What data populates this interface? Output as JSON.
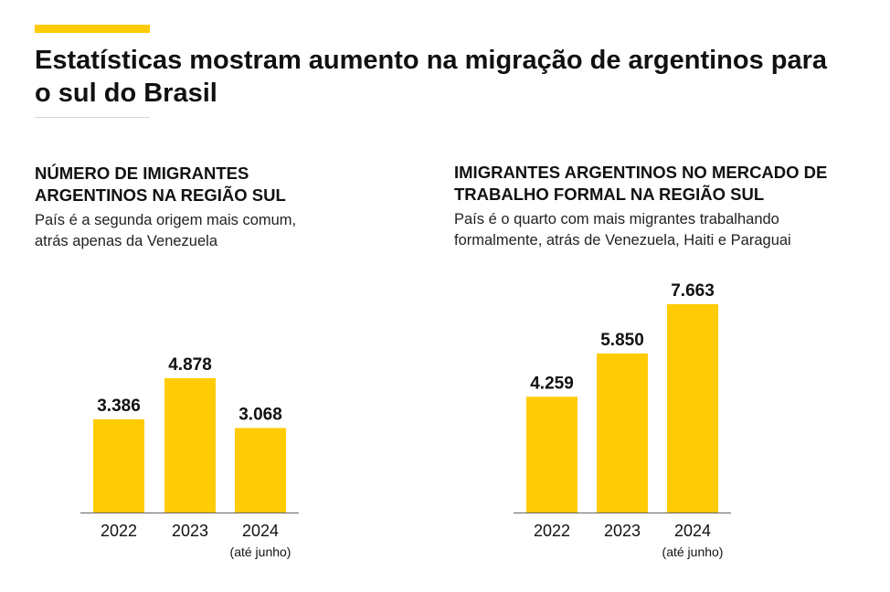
{
  "page": {
    "headline": "Estatísticas mostram aumento na migração de argentinos para o sul do Brasil",
    "accent_color": "#FFCB05"
  },
  "chart_data": [
    {
      "type": "bar",
      "title": "NÚMERO DE IMIGRANTES ARGENTINOS NA REGIÃO SUL",
      "subtitle": "País é a segunda origem mais comum, atrás apenas da Venezuela",
      "categories": [
        "2022",
        "2023",
        "2024"
      ],
      "category_notes": [
        "",
        "",
        "(até junho)"
      ],
      "values": [
        3386,
        4878,
        3068
      ],
      "value_labels": [
        "3.386",
        "4.878",
        "3.068"
      ],
      "xlabel": "",
      "ylabel": "",
      "ylim": [
        0,
        4878
      ],
      "grid": false,
      "legend": "none",
      "bar_color": "#FFCB05"
    },
    {
      "type": "bar",
      "title": "IMIGRANTES ARGENTINOS NO MERCADO DE TRABALHO FORMAL NA REGIÃO SUL",
      "subtitle": "País é o quarto com mais migrantes trabalhando formalmente, atrás de Venezuela, Haiti e Paraguai",
      "categories": [
        "2022",
        "2023",
        "2024"
      ],
      "category_notes": [
        "",
        "",
        "(até junho)"
      ],
      "values": [
        4259,
        5850,
        7663
      ],
      "value_labels": [
        "4.259",
        "5.850",
        "7.663"
      ],
      "xlabel": "",
      "ylabel": "",
      "ylim": [
        0,
        7663
      ],
      "grid": false,
      "legend": "none",
      "bar_color": "#FFCB05"
    }
  ]
}
